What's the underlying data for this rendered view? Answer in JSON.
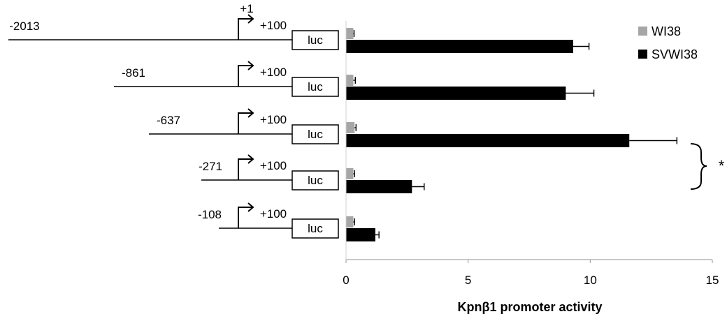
{
  "chart_data": {
    "type": "bar",
    "orientation": "horizontal",
    "xlabel": "Kpnβ1 promoter activity",
    "xlim": [
      0,
      15
    ],
    "xticks": [
      "0",
      "5",
      "10",
      "15"
    ],
    "grid": false,
    "legend_position": "top-right",
    "categories": [
      "-2013",
      "-861",
      "-637",
      "-271",
      "-108"
    ],
    "series": [
      {
        "name": "WI38",
        "color": "#a6a6a6",
        "values": [
          0.3,
          0.3,
          0.35,
          0.3,
          0.3
        ],
        "errors": [
          0.03,
          0.08,
          0.06,
          0.05,
          0.05
        ]
      },
      {
        "name": "SVWI38",
        "color": "#000000",
        "values": [
          9.3,
          9.0,
          11.6,
          2.7,
          1.2
        ],
        "errors": [
          0.65,
          1.15,
          1.95,
          0.5,
          0.15
        ]
      }
    ],
    "significance": {
      "between": [
        "-637",
        "-271"
      ],
      "label": "*"
    }
  },
  "constructs": {
    "tss_label": "+1",
    "end_label": "+100",
    "reporter_label": "luc"
  }
}
